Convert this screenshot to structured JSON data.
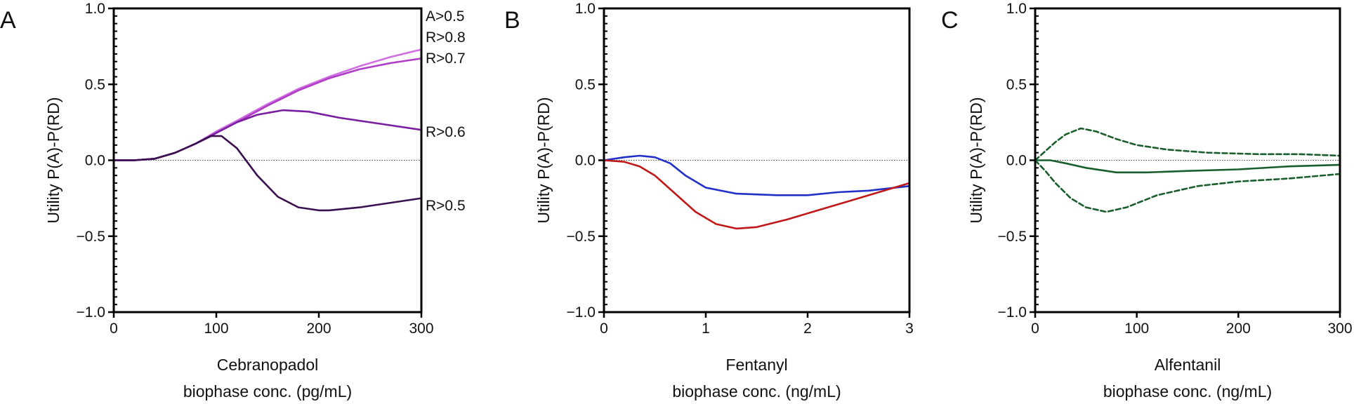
{
  "chart_data": [
    {
      "type": "line",
      "panel_label": "A",
      "xlabel": [
        "Cebranopadol",
        "biophase conc. (pg/mL)"
      ],
      "ylabel": "Utility P(A)-P(RD)",
      "xlim": [
        0,
        300
      ],
      "ylim": [
        -1.0,
        1.0
      ],
      "xticks": [
        "0",
        "100",
        "200",
        "300"
      ],
      "yticks": [
        "1.0",
        "0.5",
        "0.0",
        "−0.5",
        "−1.0"
      ],
      "x_ticks_values": [
        0,
        100,
        200,
        300
      ],
      "y_ticks_values": [
        1.0,
        0.5,
        0.0,
        -0.5,
        -1.0
      ],
      "reference_line": 0,
      "top_annotation": "A>0.5",
      "series": [
        {
          "name": "R>0.8",
          "color": "#cf6fe0",
          "style": "solid",
          "x": [
            0,
            20,
            40,
            60,
            80,
            100,
            120,
            150,
            180,
            210,
            240,
            270,
            300
          ],
          "y": [
            0.0,
            0.0,
            0.01,
            0.05,
            0.11,
            0.19,
            0.26,
            0.37,
            0.47,
            0.55,
            0.62,
            0.68,
            0.73
          ]
        },
        {
          "name": "R>0.7",
          "color": "#b03cc8",
          "style": "solid",
          "x": [
            0,
            20,
            40,
            60,
            80,
            100,
            120,
            150,
            180,
            210,
            240,
            270,
            300
          ],
          "y": [
            0.0,
            0.0,
            0.01,
            0.05,
            0.11,
            0.18,
            0.25,
            0.36,
            0.46,
            0.54,
            0.6,
            0.64,
            0.67
          ]
        },
        {
          "name": "R>0.6",
          "color": "#7a1fa2",
          "style": "solid",
          "x": [
            0,
            20,
            40,
            60,
            80,
            100,
            120,
            140,
            165,
            190,
            220,
            260,
            300
          ],
          "y": [
            0.0,
            0.0,
            0.01,
            0.05,
            0.11,
            0.18,
            0.25,
            0.3,
            0.33,
            0.32,
            0.28,
            0.24,
            0.2
          ]
        },
        {
          "name": "R>0.5",
          "color": "#3a1050",
          "style": "solid",
          "x": [
            0,
            20,
            40,
            60,
            80,
            95,
            105,
            120,
            140,
            160,
            180,
            200,
            210,
            240,
            270,
            300
          ],
          "y": [
            0.0,
            0.0,
            0.01,
            0.05,
            0.11,
            0.16,
            0.16,
            0.08,
            -0.1,
            -0.24,
            -0.31,
            -0.33,
            -0.33,
            -0.31,
            -0.28,
            -0.25
          ]
        }
      ]
    },
    {
      "type": "line",
      "panel_label": "B",
      "xlabel": [
        "Fentanyl",
        "biophase conc. (ng/mL)"
      ],
      "ylabel": "Utility P(A)-P(RD)",
      "xlim": [
        0,
        3
      ],
      "ylim": [
        -1.0,
        1.0
      ],
      "xticks": [
        "0",
        "1",
        "2",
        "3"
      ],
      "yticks": [
        "1.0",
        "0.5",
        "0.0",
        "−0.5",
        "−1.0"
      ],
      "x_ticks_values": [
        0,
        1,
        2,
        3
      ],
      "y_ticks_values": [
        1.0,
        0.5,
        0.0,
        -0.5,
        -1.0
      ],
      "reference_line": 0,
      "series": [
        {
          "color": "#2030c8",
          "style": "solid",
          "x": [
            0,
            0.2,
            0.35,
            0.5,
            0.65,
            0.8,
            1.0,
            1.3,
            1.7,
            2.0,
            2.3,
            2.6,
            3.0
          ],
          "y": [
            0.0,
            0.02,
            0.03,
            0.02,
            -0.02,
            -0.1,
            -0.18,
            -0.22,
            -0.23,
            -0.23,
            -0.21,
            -0.2,
            -0.17
          ]
        },
        {
          "color": "#c01818",
          "style": "solid",
          "x": [
            0,
            0.2,
            0.35,
            0.5,
            0.7,
            0.9,
            1.1,
            1.3,
            1.5,
            1.8,
            2.1,
            2.4,
            2.7,
            3.0
          ],
          "y": [
            0.0,
            -0.01,
            -0.04,
            -0.1,
            -0.22,
            -0.34,
            -0.42,
            -0.45,
            -0.44,
            -0.39,
            -0.33,
            -0.27,
            -0.21,
            -0.15
          ]
        }
      ]
    },
    {
      "type": "line",
      "panel_label": "C",
      "xlabel": [
        "Alfentanil",
        "biophase conc. (ng/mL)"
      ],
      "ylabel": "Utility P(A)-P(RD)",
      "xlim": [
        0,
        300
      ],
      "ylim": [
        -1.0,
        1.0
      ],
      "xticks": [
        "0",
        "100",
        "200",
        "300"
      ],
      "yticks": [
        "1.0",
        "0.5",
        "0.0",
        "−0.5",
        "−1.0"
      ],
      "x_ticks_values": [
        0,
        100,
        200,
        300
      ],
      "y_ticks_values": [
        1.0,
        0.5,
        0.0,
        -0.5,
        -1.0
      ],
      "reference_line": 0,
      "series": [
        {
          "color": "#1a5e2e",
          "style": "dashed",
          "x": [
            0,
            10,
            20,
            30,
            45,
            60,
            80,
            100,
            130,
            170,
            220,
            260,
            300
          ],
          "y": [
            0.0,
            0.06,
            0.12,
            0.17,
            0.21,
            0.19,
            0.14,
            0.1,
            0.07,
            0.05,
            0.04,
            0.04,
            0.03
          ]
        },
        {
          "color": "#1a5e2e",
          "style": "solid",
          "x": [
            0,
            15,
            30,
            50,
            80,
            110,
            150,
            200,
            250,
            300
          ],
          "y": [
            0.0,
            0.0,
            -0.02,
            -0.05,
            -0.08,
            -0.08,
            -0.07,
            -0.06,
            -0.04,
            -0.03
          ]
        },
        {
          "color": "#1a5e2e",
          "style": "dashed",
          "x": [
            0,
            10,
            20,
            35,
            50,
            70,
            90,
            120,
            160,
            200,
            250,
            300
          ],
          "y": [
            0.0,
            -0.07,
            -0.15,
            -0.25,
            -0.31,
            -0.34,
            -0.31,
            -0.23,
            -0.17,
            -0.14,
            -0.12,
            -0.09
          ]
        }
      ]
    }
  ]
}
